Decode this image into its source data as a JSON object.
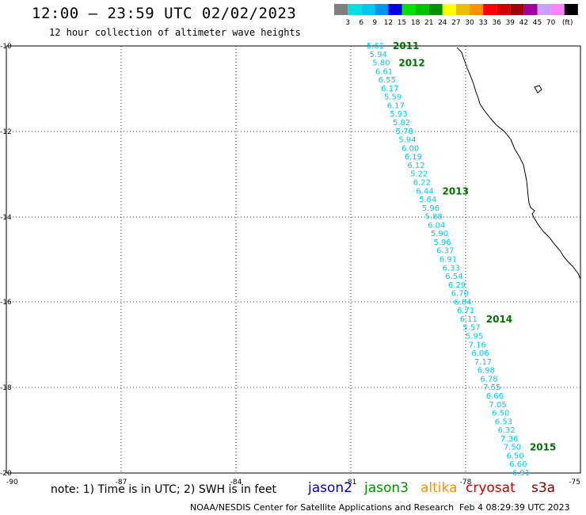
{
  "header": {
    "title": "12:00 – 23:59 UTC 02/02/2023",
    "subtitle": "12 hour collection of altimeter wave heights"
  },
  "legend": {
    "unit": "(ft)",
    "swatches": [
      {
        "label": "",
        "color": "#808080"
      },
      {
        "label": "3",
        "color": "#00e0e0"
      },
      {
        "label": "6",
        "color": "#00c8f0"
      },
      {
        "label": "9",
        "color": "#0096f0"
      },
      {
        "label": "12",
        "color": "#0000e0"
      },
      {
        "label": "15",
        "color": "#00e000"
      },
      {
        "label": "18",
        "color": "#00c000"
      },
      {
        "label": "21",
        "color": "#009000"
      },
      {
        "label": "24",
        "color": "#ffff00"
      },
      {
        "label": "27",
        "color": "#e8c000"
      },
      {
        "label": "30",
        "color": "#ff9000"
      },
      {
        "label": "33",
        "color": "#ff0000"
      },
      {
        "label": "36",
        "color": "#d00000"
      },
      {
        "label": "39",
        "color": "#a00000"
      },
      {
        "label": "42",
        "color": "#a000a0"
      },
      {
        "label": "45",
        "color": "#c8a0ff"
      },
      {
        "label": "70",
        "color": "#ff80ff"
      },
      {
        "label": "",
        "color": "#000000"
      }
    ]
  },
  "axes": {
    "lat_labels": [
      "-10",
      "-12",
      "-14",
      "-16",
      "-18",
      "-20"
    ],
    "lon_labels": [
      "-90",
      "-87",
      "-84",
      "-81",
      "-78",
      "-75"
    ]
  },
  "track": {
    "color": "#00c8f0",
    "values": [
      "5.61",
      "5.94",
      "5.80",
      "6.61",
      "6.55",
      "6.17",
      "5.59",
      "6.17",
      "5.93",
      "5.82",
      "5.78",
      "5.94",
      "6.00",
      "6.19",
      "6.12",
      "5.22",
      "6.22",
      "6.44",
      "5.64",
      "5.96",
      "5.88",
      "6.04",
      "5.90",
      "5.96",
      "6.37",
      "6.91",
      "6.33",
      "6.54",
      "6.29",
      "6.70",
      "6.84",
      "6.71",
      "6.11",
      "5.57",
      "5.95",
      "7.16",
      "6.06",
      "7.17",
      "6.98",
      "6.78",
      "7.55",
      "6.66",
      "7.05",
      "6.50",
      "6.53",
      "6.32",
      "7.36",
      "7.50",
      "6.50",
      "6.60",
      "6.91"
    ],
    "time_labels": [
      {
        "text": "2011",
        "after": 0
      },
      {
        "text": "2012",
        "after": 2
      },
      {
        "text": "2013",
        "after": 17
      },
      {
        "text": "2014",
        "after": 32
      },
      {
        "text": "2015",
        "after": 47
      }
    ],
    "time_color": "#007000"
  },
  "footer": {
    "note": "note:  1) Time is in UTC;  2) SWH is in feet",
    "satellites": [
      {
        "name": "jason2",
        "color": "#0000cc"
      },
      {
        "name": "jason3",
        "color": "#009000"
      },
      {
        "name": "altika",
        "color": "#ff9000"
      },
      {
        "name": "cryosat",
        "color": "#cc0000"
      },
      {
        "name": "s3a",
        "color": "#800000"
      }
    ],
    "credit": "NOAA/NESDIS Center for Satellite Applications and Research",
    "updated": "Feb  4 08:29:39 UTC 2023"
  }
}
